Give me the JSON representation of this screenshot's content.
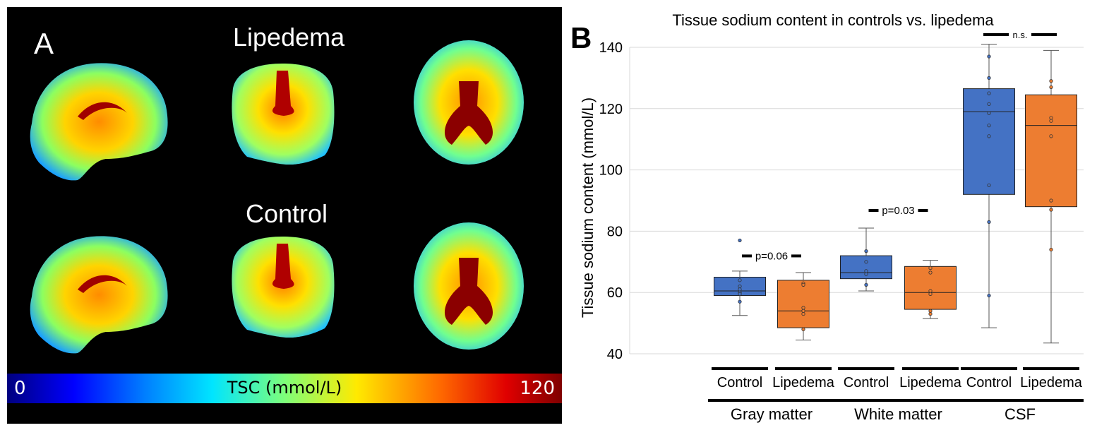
{
  "panel_a": {
    "letter": "A",
    "row_labels": [
      "Lipedema",
      "Control"
    ],
    "colorbar": {
      "min_label": "0",
      "max_label": "120",
      "label": "TSC (mmol/L)"
    }
  },
  "chart_data": {
    "type": "box",
    "panel_letter": "B",
    "title": "Tissue sodium content in controls vs. lipedema",
    "ylabel": "Tissue sodium content (mmol/L)",
    "ylim": [
      40,
      140
    ],
    "yticks": [
      40,
      60,
      80,
      100,
      120,
      140
    ],
    "grid": true,
    "colors": {
      "Control": "#4472c4",
      "Lipedema": "#ed7d31"
    },
    "groups": [
      {
        "name": "Gray matter",
        "annotation": "p=0.06",
        "boxes": [
          {
            "label": "Control",
            "series": "Control",
            "min": 52.5,
            "q1": 59,
            "median": 60.5,
            "q3": 65,
            "max": 67,
            "points": [
              77,
              64,
              62,
              61,
              60,
              59.5,
              57
            ]
          },
          {
            "label": "Lipedema",
            "series": "Lipedema",
            "min": 44.5,
            "q1": 48.5,
            "median": 54,
            "q3": 64,
            "max": 66.5,
            "points": [
              63,
              62.5,
              55,
              54,
              53,
              48
            ]
          }
        ]
      },
      {
        "name": "White matter",
        "annotation": "p=0.03",
        "boxes": [
          {
            "label": "Control",
            "series": "Control",
            "min": 60.5,
            "q1": 64.5,
            "median": 66.5,
            "q3": 72,
            "max": 81,
            "points": [
              73.5,
              70,
              67,
              66,
              62.5
            ]
          },
          {
            "label": "Lipedema",
            "series": "Lipedema",
            "min": 51.5,
            "q1": 54.5,
            "median": 60,
            "q3": 68.5,
            "max": 70.5,
            "points": [
              68,
              66.5,
              60.5,
              59.5,
              54,
              53
            ]
          }
        ]
      },
      {
        "name": "CSF",
        "annotation": "n.s.",
        "boxes": [
          {
            "label": "Control",
            "series": "Control",
            "min": 48.5,
            "q1": 92,
            "median": 119,
            "q3": 126.5,
            "max": 141,
            "points": [
              137,
              130,
              125,
              121.5,
              118.5,
              114.5,
              111,
              95,
              83,
              59
            ]
          },
          {
            "label": "Lipedema",
            "series": "Lipedema",
            "min": 43.5,
            "q1": 88,
            "median": 114.5,
            "q3": 124.5,
            "max": 139,
            "points": [
              129,
              127,
              117,
              116,
              111,
              90,
              87,
              74
            ]
          }
        ]
      }
    ]
  }
}
